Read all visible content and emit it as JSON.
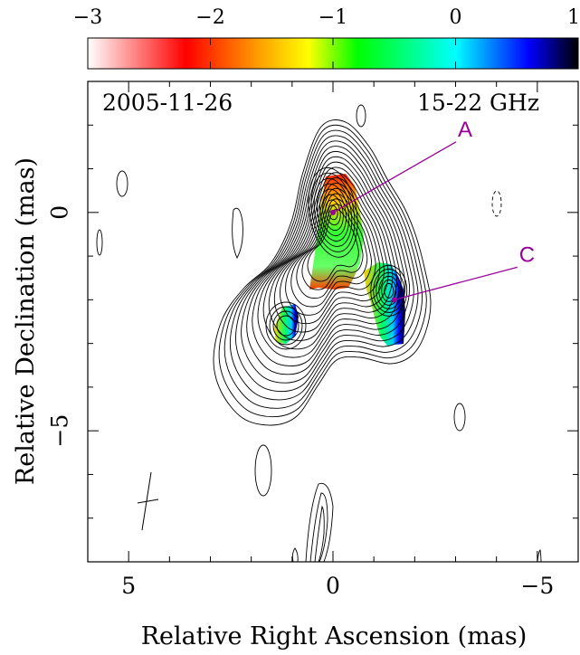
{
  "chart_data": {
    "type": "contour",
    "title_left": "2005-11-26",
    "title_right": "15-22 GHz",
    "xlabel": "Relative Right Ascension (mas)",
    "ylabel": "Relative Declination (mas)",
    "xlim": [
      6,
      -6
    ],
    "ylim": [
      -8,
      3
    ],
    "x_ticks": [
      5,
      0,
      -5
    ],
    "x_tick_labels": [
      "5",
      "0",
      "−5"
    ],
    "y_ticks": [
      0,
      -5
    ],
    "y_tick_labels": [
      "0",
      "−5"
    ],
    "colorbar": {
      "range": [
        -3,
        1
      ],
      "ticks": [
        -3,
        -2,
        -1,
        0,
        1
      ],
      "tick_labels": [
        "−3",
        "−2",
        "−1",
        "0",
        "1"
      ],
      "colors": [
        "#ffffff",
        "#ff0000",
        "#ffff00",
        "#00ff00",
        "#00ffff",
        "#0000ff",
        "#000000"
      ]
    },
    "annotations": [
      {
        "label": "A",
        "x": 0.0,
        "y": 0.0,
        "color": "#990099"
      },
      {
        "label": "C",
        "x": -1.5,
        "y": -2.0,
        "color": "#990099"
      }
    ],
    "beam": {
      "x": 4.6,
      "y": -6.8
    }
  }
}
